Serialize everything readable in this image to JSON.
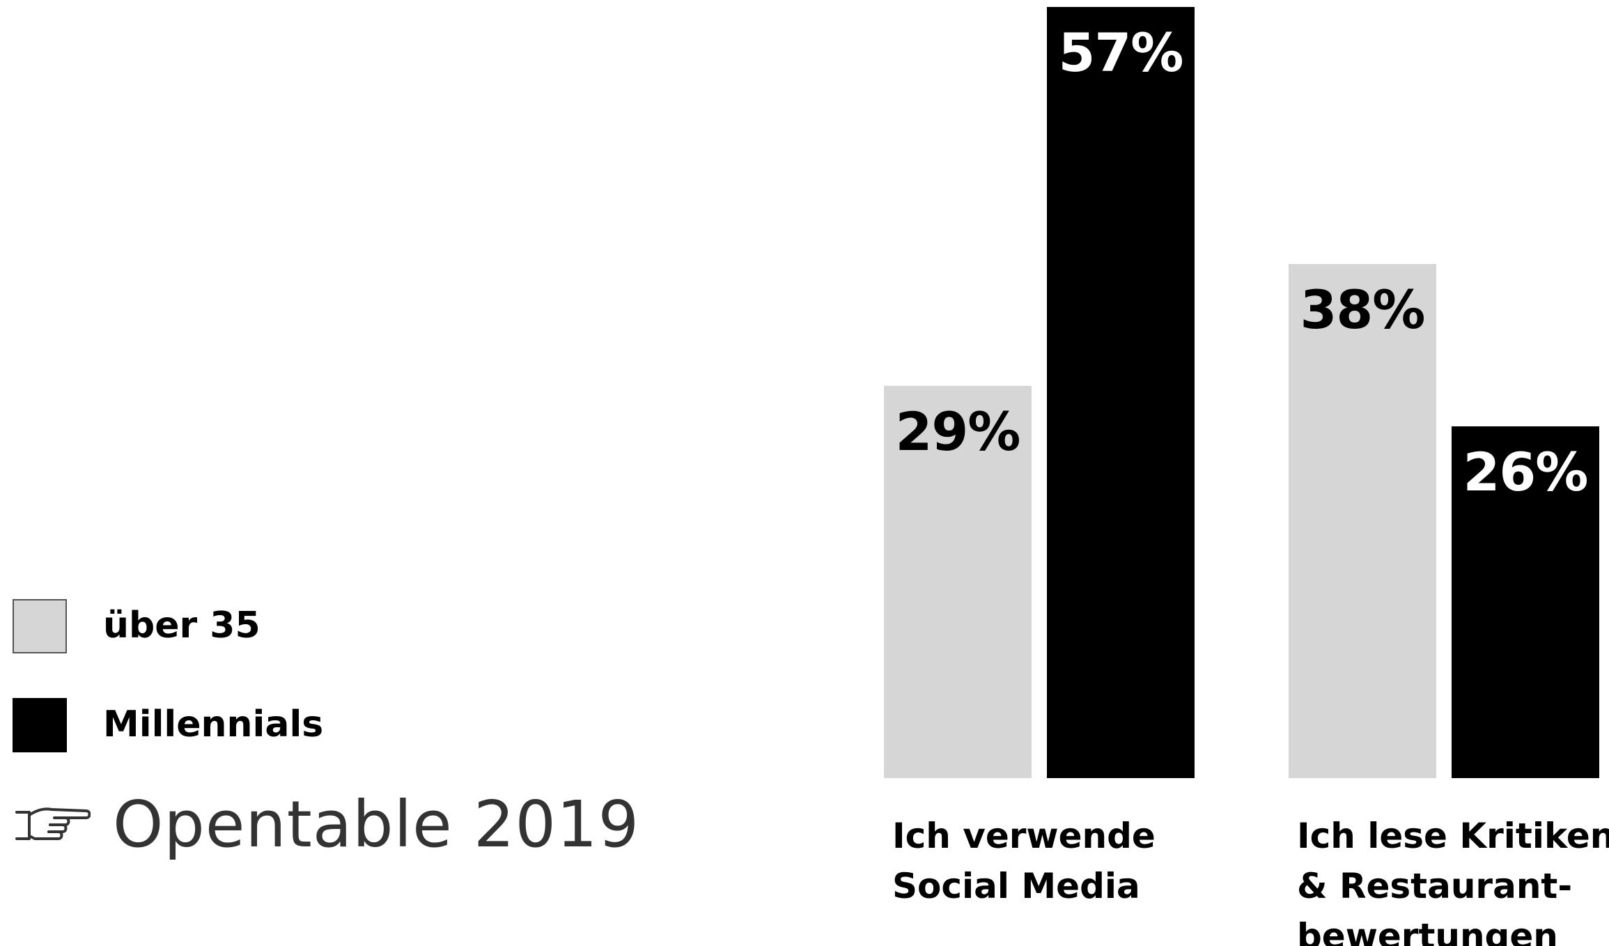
{
  "chart_data": {
    "type": "bar",
    "categories": [
      [
        "Ich verwende",
        "Social Media"
      ],
      [
        "Ich lese Kritiken",
        "& Restaurant-",
        "bewertungen"
      ]
    ],
    "series": [
      {
        "name": "über 35",
        "values": [
          29,
          38
        ],
        "value_labels": [
          "29%",
          "38%"
        ],
        "color": "#d6d6d6",
        "label_color": "#000000"
      },
      {
        "name": "Millennials",
        "values": [
          57,
          26
        ],
        "value_labels": [
          "57%",
          "26%"
        ],
        "color": "#000000",
        "label_color": "#ffffff"
      }
    ],
    "ylim": [
      0,
      57
    ],
    "grid": false,
    "legend_position": "left"
  },
  "source": {
    "icon": "pointing-hand-icon",
    "text": "Opentable 2019"
  }
}
